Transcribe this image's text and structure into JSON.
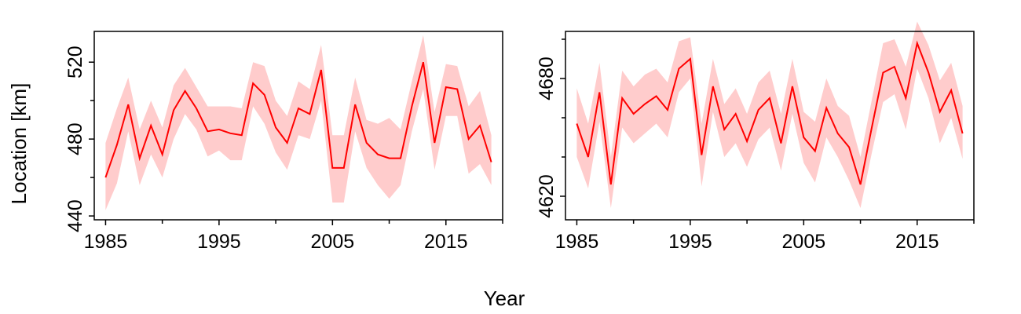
{
  "figure": {
    "xlabel": "Year",
    "ylabel": "Location [km]"
  },
  "colors": {
    "line": "#ff0000",
    "band": "#ffcccc",
    "axis": "#000000"
  },
  "chart_data": [
    {
      "type": "line",
      "name": "left-panel",
      "xlim": [
        1984,
        2020
      ],
      "ylim": [
        438,
        536
      ],
      "xticks": [
        1985,
        1995,
        2005,
        2015
      ],
      "xminor": [
        1990,
        2000,
        2010,
        2020
      ],
      "yticks": [
        440,
        480,
        520
      ],
      "yminor": [
        460,
        500
      ],
      "series": [
        {
          "x": [
            1985,
            1986,
            1987,
            1988,
            1989,
            1990,
            1991,
            1992,
            1993,
            1994,
            1995,
            1996,
            1997,
            1998,
            1999,
            2000,
            2001,
            2002,
            2003,
            2004,
            2005,
            2006,
            2007,
            2008,
            2009,
            2010,
            2011,
            2012,
            2013,
            2014,
            2015,
            2016,
            2017,
            2018,
            2019
          ],
          "y": [
            460,
            477,
            498,
            470,
            487,
            472,
            495,
            505,
            496,
            484,
            485,
            483,
            482,
            509,
            503,
            486,
            478,
            496,
            493,
            516,
            465,
            465,
            498,
            478,
            472,
            470,
            470,
            497,
            520,
            478,
            507,
            506,
            480,
            487,
            468
          ],
          "lower": [
            443,
            457,
            484,
            456,
            472,
            460,
            480,
            493,
            485,
            471,
            474,
            469,
            469,
            497,
            488,
            473,
            464,
            482,
            480,
            500,
            447,
            447,
            484,
            465,
            456,
            449,
            456,
            484,
            506,
            464,
            492,
            492,
            462,
            467,
            456
          ],
          "upper": [
            478,
            496,
            512,
            485,
            500,
            486,
            508,
            517,
            507,
            497,
            497,
            497,
            496,
            520,
            518,
            500,
            492,
            510,
            506,
            529,
            482,
            482,
            512,
            490,
            488,
            491,
            485,
            510,
            534,
            494,
            519,
            518,
            497,
            505,
            482
          ]
        }
      ]
    },
    {
      "type": "line",
      "name": "right-panel",
      "xlim": [
        1984,
        2020
      ],
      "ylim": [
        4608,
        4704
      ],
      "xticks": [
        1985,
        1995,
        2005,
        2015
      ],
      "xminor": [
        1990,
        2000,
        2010,
        2020
      ],
      "yticks": [
        4620,
        4680
      ],
      "yminor": [
        4640,
        4660,
        4700
      ],
      "series": [
        {
          "x": [
            1985,
            1986,
            1987,
            1988,
            1989,
            1990,
            1991,
            1992,
            1993,
            1994,
            1995,
            1996,
            1997,
            1998,
            1999,
            2000,
            2001,
            2002,
            2003,
            2004,
            2005,
            2006,
            2007,
            2008,
            2009,
            2010,
            2011,
            2012,
            2013,
            2014,
            2015,
            2016,
            2017,
            2018,
            2019
          ],
          "y": [
            4657,
            4640,
            4673,
            4626,
            4670,
            4662,
            4667,
            4671,
            4664,
            4685,
            4690,
            4641,
            4676,
            4654,
            4662,
            4648,
            4664,
            4670,
            4647,
            4676,
            4650,
            4643,
            4665,
            4652,
            4645,
            4626,
            4655,
            4683,
            4686,
            4670,
            4698,
            4683,
            4663,
            4674,
            4652
          ],
          "lower": [
            4640,
            4624,
            4658,
            4614,
            4655,
            4647,
            4652,
            4657,
            4650,
            4673,
            4680,
            4625,
            4663,
            4640,
            4647,
            4635,
            4649,
            4655,
            4633,
            4662,
            4637,
            4627,
            4650,
            4640,
            4628,
            4614,
            4642,
            4668,
            4672,
            4654,
            4685,
            4670,
            4647,
            4660,
            4639
          ],
          "upper": [
            4675,
            4657,
            4688,
            4640,
            4684,
            4676,
            4682,
            4685,
            4678,
            4699,
            4701,
            4657,
            4690,
            4667,
            4675,
            4662,
            4678,
            4684,
            4662,
            4690,
            4663,
            4658,
            4680,
            4666,
            4661,
            4640,
            4669,
            4698,
            4700,
            4686,
            4709,
            4697,
            4679,
            4688,
            4666
          ]
        }
      ]
    }
  ]
}
